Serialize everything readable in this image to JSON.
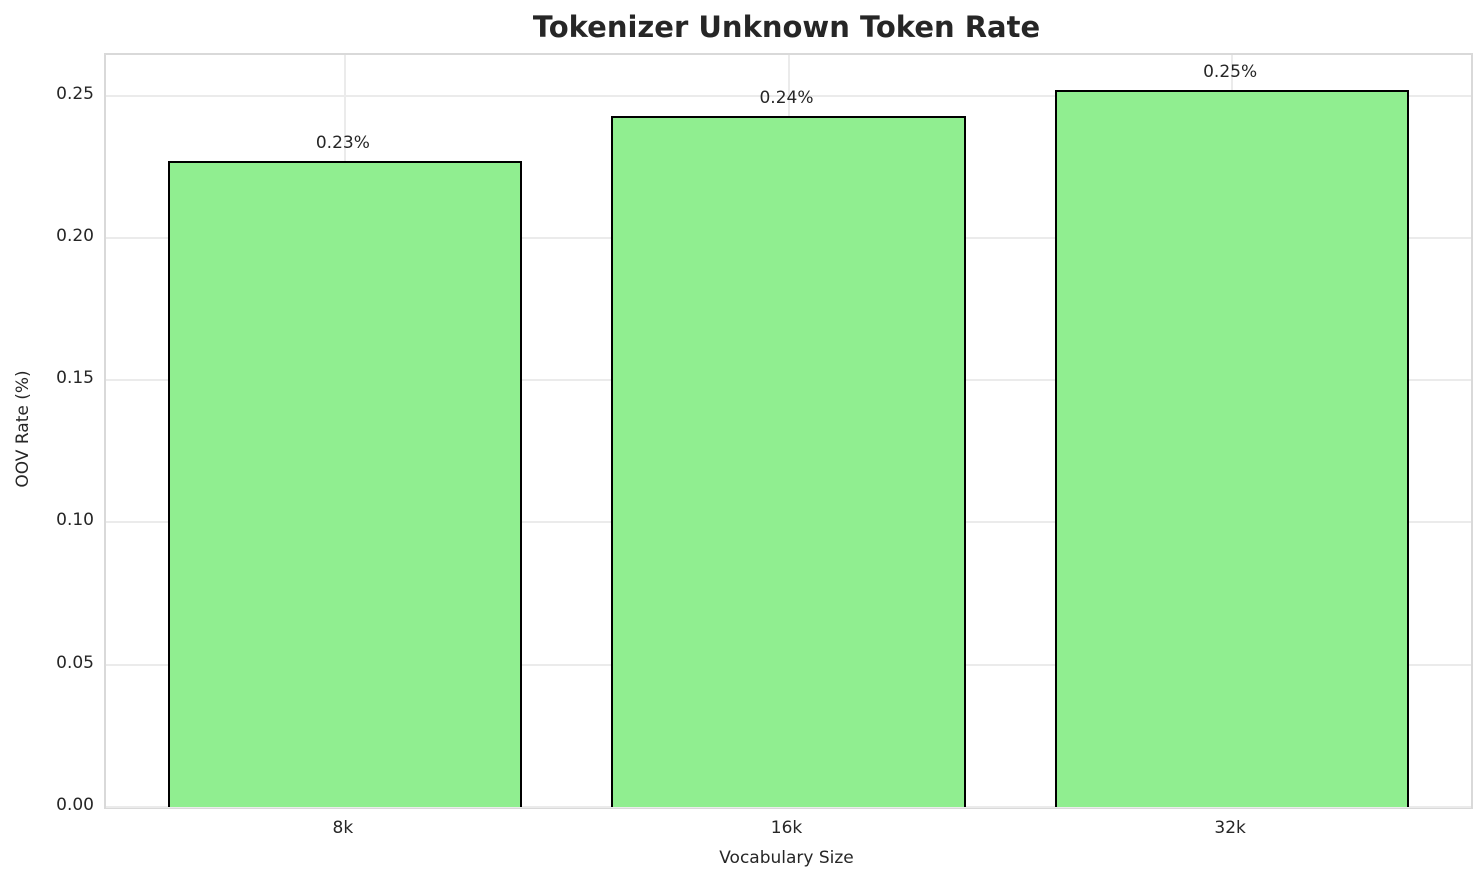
{
  "chart_data": {
    "type": "bar",
    "title": "Tokenizer Unknown Token Rate",
    "xlabel": "Vocabulary Size",
    "ylabel": "OOV Rate (%)",
    "categories": [
      "8k",
      "16k",
      "32k"
    ],
    "values": [
      0.227,
      0.243,
      0.252
    ],
    "value_labels": [
      "0.23%",
      "0.24%",
      "0.25%"
    ],
    "y_ticks": [
      0.0,
      0.05,
      0.1,
      0.15,
      0.2,
      0.25
    ],
    "y_tick_labels": [
      "0.00",
      "0.05",
      "0.10",
      "0.15",
      "0.20",
      "0.25"
    ],
    "ylim": [
      0,
      0.2643
    ],
    "grid": "on",
    "legend": "none",
    "bar_fill_color": "#90EE90",
    "bar_edge_color": "#000000",
    "grid_color": "#ebebeb",
    "spine_color": "#d9d9d9",
    "text_color": "#262626"
  }
}
